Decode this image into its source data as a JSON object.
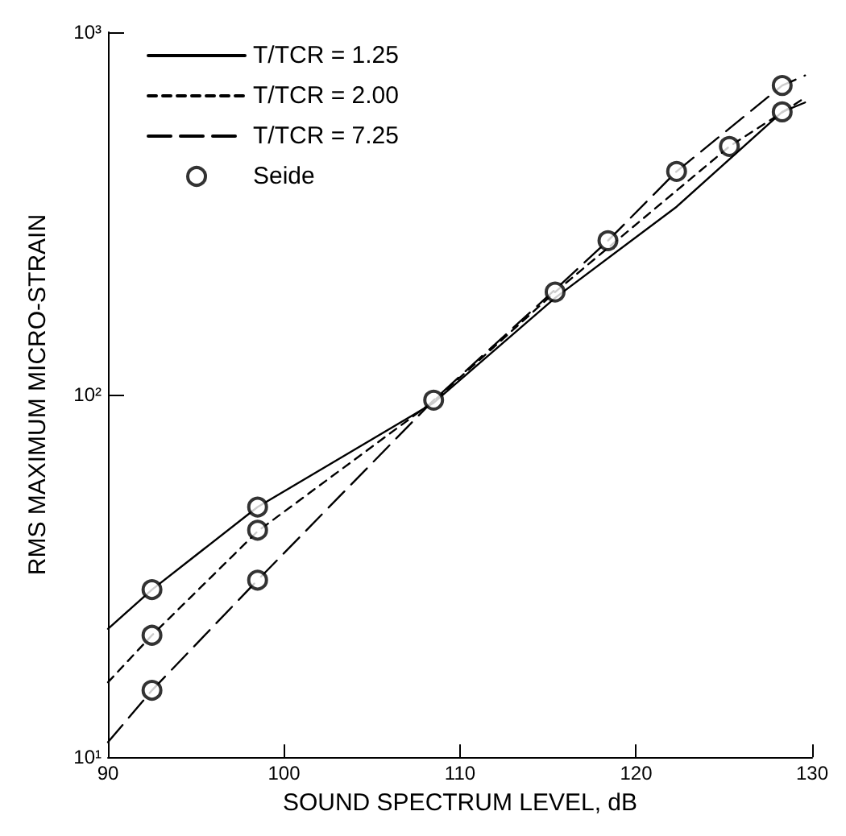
{
  "chart_data": {
    "type": "line",
    "xlabel": "SOUND SPECTRUM LEVEL, dB",
    "ylabel": "RMS MAXIMUM MICRO-STRAIN",
    "xlim": [
      90,
      130
    ],
    "xticks": [
      90,
      100,
      110,
      120,
      130
    ],
    "ylim": [
      10,
      1000
    ],
    "yticks": [
      {
        "value": 10,
        "label": "10¹"
      },
      {
        "value": 100,
        "label": "10²"
      },
      {
        "value": 1000,
        "label": "10³"
      }
    ],
    "log": "y",
    "grid": false,
    "legend": "top left",
    "series": [
      {
        "name": "T/TCR = 1.25",
        "color": "#000000",
        "line_style": "solid",
        "marker": "none",
        "x": [
          90,
          92.5,
          98.5,
          108.5,
          115.4,
          122.3,
          128.3,
          129.6
        ],
        "values": [
          22.6,
          29,
          49,
          95,
          185,
          330,
          603,
          640
        ]
      },
      {
        "name": "T/TCR = 2.00",
        "color": "#000000",
        "line_style": "dashed",
        "marker": "none",
        "x": [
          90,
          92.5,
          98.5,
          108.5,
          115.4,
          125.3,
          129.6
        ],
        "values": [
          16.1,
          21.7,
          42,
          96,
          192,
          484,
          660
        ]
      },
      {
        "name": "T/TCR = 7.25",
        "color": "#000000",
        "line_style": "dashed",
        "marker": "none",
        "x": [
          90,
          92.5,
          98.5,
          108.5,
          115.4,
          118.4,
          122.3,
          128.3,
          129.6
        ],
        "values": [
          11,
          15.3,
          30.8,
          96.6,
          195,
          266,
          413,
          713,
          760
        ]
      },
      {
        "name": "Seide",
        "type": "scatter",
        "color": "#000000",
        "marker": "circle",
        "x": [
          92.5,
          92.5,
          92.5,
          98.5,
          98.5,
          98.5,
          108.5,
          115.4,
          118.4,
          122.3,
          125.3,
          128.3,
          128.3
        ],
        "values": [
          29,
          21.7,
          15.3,
          49,
          42.3,
          30.8,
          96.6,
          192,
          266,
          413,
          484,
          713,
          603
        ]
      }
    ]
  }
}
